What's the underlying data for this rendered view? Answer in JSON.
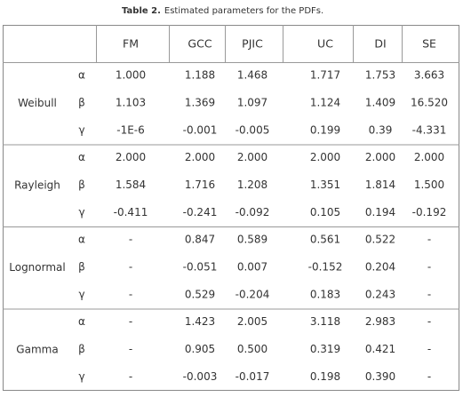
{
  "caption": {
    "label": "Table 2.",
    "text": "Estimated parameters for the PDFs."
  },
  "table": {
    "columns": [
      "FM",
      "GCC",
      "PJIC",
      "UC",
      "DI",
      "SE"
    ],
    "groups": [
      {
        "name": "Weibull",
        "rows": [
          {
            "param": "α",
            "values": [
              "1.000",
              "1.188",
              "1.468",
              "1.717",
              "1.753",
              "3.663"
            ]
          },
          {
            "param": "β",
            "values": [
              "1.103",
              "1.369",
              "1.097",
              "1.124",
              "1.409",
              "16.520"
            ]
          },
          {
            "param": "γ",
            "values": [
              "-1E-6",
              "-0.001",
              "-0.005",
              "0.199",
              "0.39",
              "-4.331"
            ]
          }
        ]
      },
      {
        "name": "Rayleigh",
        "rows": [
          {
            "param": "α",
            "values": [
              "2.000",
              "2.000",
              "2.000",
              "2.000",
              "2.000",
              "2.000"
            ]
          },
          {
            "param": "β",
            "values": [
              "1.584",
              "1.716",
              "1.208",
              "1.351",
              "1.814",
              "1.500"
            ]
          },
          {
            "param": "γ",
            "values": [
              "-0.411",
              "-0.241",
              "-0.092",
              "0.105",
              "0.194",
              "-0.192"
            ]
          }
        ]
      },
      {
        "name": "Lognormal",
        "rows": [
          {
            "param": "α",
            "values": [
              "-",
              "0.847",
              "0.589",
              "0.561",
              "0.522",
              "-"
            ]
          },
          {
            "param": "β",
            "values": [
              "-",
              "-0.051",
              "0.007",
              "-0.152",
              "0.204",
              "-"
            ]
          },
          {
            "param": "γ",
            "values": [
              "-",
              "0.529",
              "-0.204",
              "0.183",
              "0.243",
              "-"
            ]
          }
        ]
      },
      {
        "name": "Gamma",
        "rows": [
          {
            "param": "α",
            "values": [
              "-",
              "1.423",
              "2.005",
              "3.118",
              "2.983",
              "-"
            ]
          },
          {
            "param": "β",
            "values": [
              "-",
              "0.905",
              "0.500",
              "0.319",
              "0.421",
              "-"
            ]
          },
          {
            "param": "γ",
            "values": [
              "-",
              "-0.003",
              "-0.017",
              "0.198",
              "0.390",
              "-"
            ]
          }
        ]
      }
    ]
  }
}
